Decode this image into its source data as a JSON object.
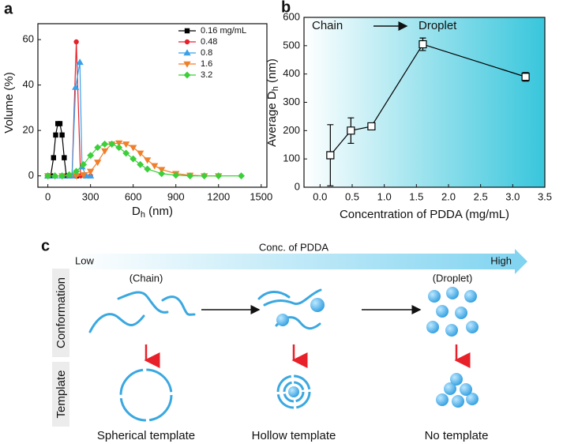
{
  "chart_data": [
    {
      "type": "line",
      "panel_label": "a",
      "x_label": {
        "main": "D",
        "sub": "h",
        "unit": " (nm)"
      },
      "y_label": "Volume (%)",
      "xlim": [
        -70,
        1540
      ],
      "ylim": [
        -5,
        67
      ],
      "xticks": [
        0,
        300,
        600,
        900,
        1200,
        1500
      ],
      "yticks": [
        0,
        20,
        40,
        60
      ],
      "legend": "upper right",
      "series": [
        {
          "name": "0.16 mg/mL",
          "color": "#000000",
          "marker": "square",
          "x": [
            0,
            20,
            40,
            55,
            70,
            85,
            100,
            115,
            130,
            150,
            200
          ],
          "values": [
            0,
            0,
            8,
            18,
            23,
            23,
            18,
            8,
            0,
            0,
            0
          ]
        },
        {
          "name": "0.48",
          "color": "#e8202a",
          "marker": "circle",
          "x": [
            0,
            50,
            100,
            150,
            170,
            200,
            230,
            260,
            300
          ],
          "values": [
            0,
            0,
            0,
            0,
            0,
            59,
            0,
            0,
            0
          ]
        },
        {
          "name": "0.8",
          "color": "#3aa0e8",
          "marker": "triangle-up",
          "x": [
            0,
            50,
            100,
            150,
            170,
            195,
            225,
            240,
            270,
            300
          ],
          "values": [
            0,
            0,
            0,
            0,
            0,
            39,
            50,
            4,
            0,
            0
          ]
        },
        {
          "name": "1.6",
          "color": "#f07f2a",
          "marker": "triangle-down",
          "x": [
            0,
            100,
            200,
            250,
            300,
            350,
            400,
            450,
            500,
            550,
            600,
            650,
            700,
            750,
            800,
            900,
            1000,
            1100,
            1200
          ],
          "values": [
            0,
            0,
            0,
            0.5,
            2,
            6,
            11,
            14,
            14.5,
            14,
            12.5,
            10,
            7,
            4.5,
            2.8,
            1,
            0.3,
            0,
            0
          ]
        },
        {
          "name": "3.2",
          "color": "#3ccf3a",
          "marker": "diamond",
          "x": [
            0,
            50,
            100,
            150,
            200,
            250,
            300,
            350,
            400,
            450,
            500,
            550,
            600,
            650,
            700,
            800,
            900,
            1000,
            1100,
            1200,
            1360
          ],
          "values": [
            0,
            0,
            0,
            0.5,
            2,
            5,
            9,
            12.5,
            14,
            14,
            12.5,
            10,
            7.5,
            5,
            3,
            1,
            0.3,
            0,
            0,
            0,
            0
          ]
        }
      ]
    },
    {
      "type": "line",
      "panel_label": "b",
      "x_label": "Concentration of PDDA (mg/mL)",
      "y_label": {
        "main": "Average D",
        "sub": "h",
        "unit": " (nm)"
      },
      "annotations": [
        "Chain",
        "Droplet"
      ],
      "xlim": [
        -0.25,
        3.5
      ],
      "ylim": [
        0,
        600
      ],
      "xticks": [
        {
          "value": 0,
          "label": "0.0"
        },
        0.5,
        {
          "value": 1,
          "label": "1.0"
        },
        1.5,
        {
          "value": 2,
          "label": "2.0"
        },
        2.5,
        {
          "value": 3,
          "label": "3.0"
        },
        3.5
      ],
      "yticks": [
        0,
        100,
        200,
        300,
        400,
        500,
        600
      ],
      "series": [
        {
          "color": "#000000",
          "marker": "square",
          "marker_fill": "#ffffff",
          "x": [
            0.16,
            0.48,
            0.8,
            1.6,
            3.2
          ],
          "values": [
            113,
            200,
            215,
            505,
            390
          ],
          "errors": [
            108,
            45,
            12,
            22,
            15
          ]
        }
      ]
    }
  ],
  "diagram": {
    "panel_label": "c",
    "arrow_label": "Conc. of PDDA",
    "low": "Low",
    "high": "High",
    "rows": [
      "Conformation",
      "Template"
    ],
    "states": [
      "(Chain)",
      "(Droplet)"
    ],
    "templates": [
      "Spherical template",
      "Hollow template",
      "No template"
    ]
  }
}
